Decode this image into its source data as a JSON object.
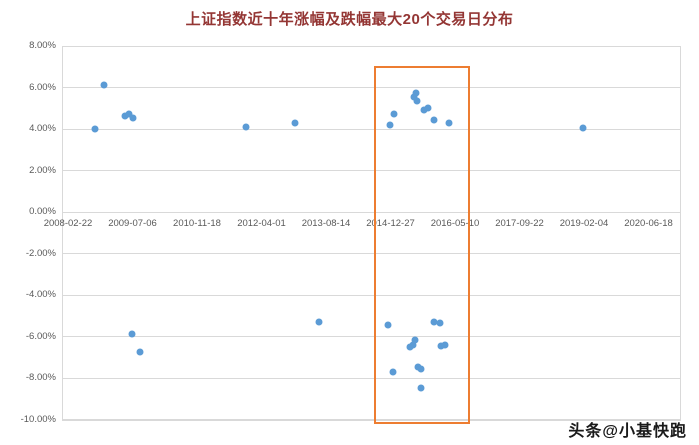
{
  "title": "上证指数近十年涨幅及跌幅最大20个交易日分布",
  "watermark": "头条@小基快跑",
  "colors": {
    "title": "#943634",
    "point": "#5b9bd5",
    "highlight_box": "#ed7d31",
    "gridline": "#d9d9d9",
    "plot_border": "#d9d9d9",
    "axis_text": "#595959"
  },
  "chart_data": {
    "type": "scatter",
    "title": "上证指数近十年涨幅及跌幅最大20个交易日分布",
    "grid": "horizontal",
    "legend": "none",
    "x_axis": {
      "ticks": [
        "2008-02-22",
        "2009-07-06",
        "2010-11-18",
        "2012-04-01",
        "2013-08-14",
        "2014-12-27",
        "2016-05-10",
        "2017-09-22",
        "2019-02-04",
        "2020-06-18"
      ]
    },
    "y_axis": {
      "min": -10,
      "max": 8,
      "unit": "percent",
      "ticks": [
        {
          "label": "8.00%",
          "value": 8
        },
        {
          "label": "6.00%",
          "value": 6
        },
        {
          "label": "4.00%",
          "value": 4
        },
        {
          "label": "2.00%",
          "value": 2
        },
        {
          "label": "0.00%",
          "value": 0
        },
        {
          "label": "-2.00%",
          "value": -2
        },
        {
          "label": "-4.00%",
          "value": -4
        },
        {
          "label": "-6.00%",
          "value": -6
        },
        {
          "label": "-8.00%",
          "value": -8
        },
        {
          "label": "-10.00%",
          "value": -10
        }
      ]
    },
    "points": [
      {
        "date": "2008-09-19",
        "value": 4.0
      },
      {
        "date": "2008-11-28",
        "value": 6.1
      },
      {
        "date": "2009-05-11",
        "value": 4.65
      },
      {
        "date": "2009-06-10",
        "value": 4.75
      },
      {
        "date": "2009-07-12",
        "value": 4.55
      },
      {
        "date": "2011-12-05",
        "value": 4.1
      },
      {
        "date": "2012-12-14",
        "value": 4.3
      },
      {
        "date": "2014-12-22",
        "value": 4.2
      },
      {
        "date": "2015-01-21",
        "value": 4.75
      },
      {
        "date": "2015-06-30",
        "value": 5.55
      },
      {
        "date": "2015-07-09",
        "value": 5.75
      },
      {
        "date": "2015-07-17",
        "value": 5.35
      },
      {
        "date": "2015-09-16",
        "value": 4.9
      },
      {
        "date": "2015-10-12",
        "value": 5.0
      },
      {
        "date": "2015-11-30",
        "value": 4.45
      },
      {
        "date": "2016-03-21",
        "value": 4.3
      },
      {
        "date": "2019-01-25",
        "value": 4.05
      },
      {
        "date": "2009-07-02",
        "value": -5.85
      },
      {
        "date": "2009-08-31",
        "value": -6.75
      },
      {
        "date": "2013-06-24",
        "value": -5.3
      },
      {
        "date": "2014-12-09",
        "value": -5.45
      },
      {
        "date": "2015-01-19",
        "value": -7.7
      },
      {
        "date": "2015-05-28",
        "value": -6.5
      },
      {
        "date": "2015-06-19",
        "value": -6.4
      },
      {
        "date": "2015-07-03",
        "value": -6.15
      },
      {
        "date": "2015-07-27",
        "value": -7.45
      },
      {
        "date": "2015-08-18",
        "value": -7.55
      },
      {
        "date": "2015-08-24",
        "value": -8.45
      },
      {
        "date": "2015-11-27",
        "value": -5.3
      },
      {
        "date": "2016-01-11",
        "value": -5.35
      },
      {
        "date": "2016-01-26",
        "value": -6.45
      },
      {
        "date": "2016-02-25",
        "value": -6.4
      }
    ],
    "highlight_box": {
      "x_from": "2014-08-20",
      "x_to": "2016-09-03",
      "y_top": 7.05,
      "y_bottom": -10.2
    }
  }
}
